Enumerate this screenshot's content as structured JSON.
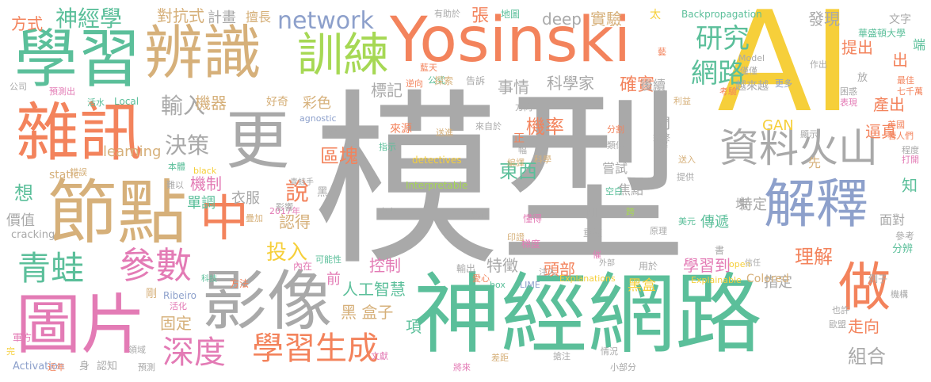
{
  "palette": {
    "gray": "#a9a9a9",
    "yellow": "#f6cf3a",
    "teal": "#5bbf9a",
    "orange": "#f3835c",
    "tan": "#d6b07a",
    "pink": "#e37bb5",
    "blue": "#8da0cb",
    "green": "#a6d854"
  },
  "words": [
    {
      "text": "模型",
      "color": "gray"
    },
    {
      "text": "AI",
      "color": "yellow"
    },
    {
      "text": "Yosinski",
      "color": "orange"
    },
    {
      "text": "神經網路",
      "color": "teal"
    },
    {
      "text": "學習",
      "color": "teal"
    },
    {
      "text": "辨識",
      "color": "tan"
    },
    {
      "text": "雜訊",
      "color": "orange"
    },
    {
      "text": "更",
      "color": "gray"
    },
    {
      "text": "節點",
      "color": "tan"
    },
    {
      "text": "影像",
      "color": "gray"
    },
    {
      "text": "圖片",
      "color": "pink"
    },
    {
      "text": "解釋",
      "color": "blue"
    },
    {
      "text": "訓練",
      "color": "green"
    },
    {
      "text": "資料火山",
      "color": "gray"
    },
    {
      "text": "做",
      "color": "orange"
    },
    {
      "text": "中",
      "color": "orange"
    },
    {
      "text": "參數",
      "color": "pink"
    },
    {
      "text": "青蛙",
      "color": "teal"
    },
    {
      "text": "深度",
      "color": "pink"
    },
    {
      "text": "學習生成",
      "color": "orange"
    },
    {
      "text": "神經學",
      "color": "teal"
    },
    {
      "text": "network",
      "color": "blue"
    },
    {
      "text": "研究",
      "color": "teal"
    },
    {
      "text": "網路",
      "color": "teal"
    },
    {
      "text": "方式",
      "color": "orange"
    },
    {
      "text": "對抗式",
      "color": "tan"
    },
    {
      "text": "計畫",
      "color": "gray"
    },
    {
      "text": "擅長",
      "color": "tan"
    },
    {
      "text": "張",
      "color": "orange"
    },
    {
      "text": "地圖",
      "color": "teal"
    },
    {
      "text": "太",
      "color": "yellow"
    },
    {
      "text": "Backpropagation",
      "color": "teal"
    },
    {
      "text": "deep",
      "color": "gray"
    },
    {
      "text": "實驗",
      "color": "tan"
    },
    {
      "text": "發現",
      "color": "gray"
    },
    {
      "text": "文字",
      "color": "gray"
    },
    {
      "text": "華盛頓大學",
      "color": "teal"
    },
    {
      "text": "提出",
      "color": "orange"
    },
    {
      "text": "輸入",
      "color": "gray"
    },
    {
      "text": "決策",
      "color": "gray"
    },
    {
      "text": "機器",
      "color": "tan"
    },
    {
      "text": "事情",
      "color": "gray"
    },
    {
      "text": "科學家",
      "color": "gray"
    },
    {
      "text": "確實",
      "color": "orange"
    },
    {
      "text": "標記",
      "color": "gray"
    },
    {
      "text": "機率",
      "color": "orange"
    },
    {
      "text": "區塊",
      "color": "orange"
    },
    {
      "text": "東西",
      "color": "teal"
    },
    {
      "text": "說",
      "color": "orange"
    },
    {
      "text": "機制",
      "color": "pink"
    },
    {
      "text": "投入",
      "color": "yellow"
    },
    {
      "text": "控制",
      "color": "pink"
    },
    {
      "text": "特徵",
      "color": "gray"
    },
    {
      "text": "頭部",
      "color": "orange"
    },
    {
      "text": "學習到",
      "color": "pink"
    },
    {
      "text": "理解",
      "color": "orange"
    },
    {
      "text": "人工智慧",
      "color": "teal"
    },
    {
      "text": "黑 盒子",
      "color": "tan"
    },
    {
      "text": "黑盒",
      "color": "yellow"
    },
    {
      "text": "組合",
      "color": "gray"
    },
    {
      "text": "走向",
      "color": "orange"
    },
    {
      "text": "固定",
      "color": "tan"
    },
    {
      "text": "項",
      "color": "teal"
    },
    {
      "text": "逼真",
      "color": "orange"
    },
    {
      "text": "產出",
      "color": "orange"
    },
    {
      "text": "GAN",
      "color": "yellow"
    },
    {
      "text": "learning",
      "color": "tan"
    },
    {
      "text": "static",
      "color": "tan"
    },
    {
      "text": "想",
      "color": "teal"
    },
    {
      "text": "價值",
      "color": "gray"
    },
    {
      "text": "單調",
      "color": "teal"
    },
    {
      "text": "認得",
      "color": "tan"
    },
    {
      "text": "彩色",
      "color": "tan"
    },
    {
      "text": "好奇",
      "color": "tan"
    },
    {
      "text": "衣服",
      "color": "gray"
    },
    {
      "text": "傳遞",
      "color": "teal"
    },
    {
      "text": "特定",
      "color": "gray"
    },
    {
      "text": "指定",
      "color": "gray"
    },
    {
      "text": "後續",
      "color": "gray"
    },
    {
      "text": "嘗試",
      "color": "gray"
    },
    {
      "text": "焦點",
      "color": "gray"
    },
    {
      "text": "越來越",
      "color": "gray"
    },
    {
      "text": "Colored",
      "color": "tan"
    },
    {
      "text": "detectives",
      "color": "yellow"
    },
    {
      "text": "Interpretable",
      "color": "green"
    },
    {
      "text": "Explanations",
      "color": "yellow"
    },
    {
      "text": "LIME",
      "color": "blue"
    },
    {
      "text": "Explainable",
      "color": "yellow"
    },
    {
      "text": "cracking",
      "color": "gray"
    },
    {
      "text": "Activation",
      "color": "blue"
    },
    {
      "text": "Ribeiro",
      "color": "blue"
    },
    {
      "text": "agnostic",
      "color": "blue"
    },
    {
      "text": "Local",
      "color": "teal"
    },
    {
      "text": "Model",
      "color": "gray"
    },
    {
      "text": "black",
      "color": "yellow"
    },
    {
      "text": "open",
      "color": "yellow"
    },
    {
      "text": "box",
      "color": "teal"
    },
    {
      "text": "2017年",
      "color": "pink"
    },
    {
      "text": "有助於",
      "color": "gray"
    },
    {
      "text": "面對",
      "color": "gray"
    },
    {
      "text": "參考",
      "color": "gray"
    },
    {
      "text": "分辨",
      "color": "teal"
    },
    {
      "text": "例子",
      "color": "gray"
    },
    {
      "text": "機構",
      "color": "gray"
    },
    {
      "text": "歐盟",
      "color": "gray"
    },
    {
      "text": "也許",
      "color": "gray"
    },
    {
      "text": "知",
      "color": "teal"
    },
    {
      "text": "先",
      "color": "tan"
    },
    {
      "text": "間",
      "color": "gray"
    },
    {
      "text": "出",
      "color": "orange"
    },
    {
      "text": "端",
      "color": "teal"
    },
    {
      "text": "放",
      "color": "gray"
    },
    {
      "text": "最佳",
      "color": "orange"
    },
    {
      "text": "七千萬",
      "color": "orange"
    },
    {
      "text": "困惑",
      "color": "gray"
    },
    {
      "text": "表現",
      "color": "pink"
    },
    {
      "text": "著人們",
      "color": "orange"
    },
    {
      "text": "程度",
      "color": "gray"
    },
    {
      "text": "打開",
      "color": "pink"
    },
    {
      "text": "近年",
      "color": "orange"
    },
    {
      "text": "身",
      "color": "gray"
    },
    {
      "text": "認知",
      "color": "gray"
    },
    {
      "text": "預測",
      "color": "gray"
    },
    {
      "text": "小部分",
      "color": "gray"
    },
    {
      "text": "差距",
      "color": "tan"
    },
    {
      "text": "將來",
      "color": "pink"
    },
    {
      "text": "情況",
      "color": "gray"
    },
    {
      "text": "搶注",
      "color": "gray"
    },
    {
      "text": "文獻",
      "color": "pink"
    },
    {
      "text": "輸出",
      "color": "gray"
    },
    {
      "text": "重複",
      "color": "gray"
    },
    {
      "text": "用於",
      "color": "gray"
    },
    {
      "text": "信任",
      "color": "gray"
    },
    {
      "text": "外部",
      "color": "gray"
    },
    {
      "text": "原理",
      "color": "gray"
    },
    {
      "text": "美元",
      "color": "teal"
    },
    {
      "text": "梯度",
      "color": "pink"
    },
    {
      "text": "懂得",
      "color": "pink"
    },
    {
      "text": "事實",
      "color": "gray"
    },
    {
      "text": "提示",
      "color": "gray"
    },
    {
      "text": "印證",
      "color": "tan"
    },
    {
      "text": "方法",
      "color": "orange"
    },
    {
      "text": "科技",
      "color": "teal"
    },
    {
      "text": "活化",
      "color": "pink"
    },
    {
      "text": "剛",
      "color": "tan"
    },
    {
      "text": "軍方",
      "color": "pink"
    },
    {
      "text": "領域",
      "color": "gray"
    },
    {
      "text": "完",
      "color": "yellow"
    },
    {
      "text": "可能性",
      "color": "teal"
    },
    {
      "text": "前",
      "color": "pink"
    },
    {
      "text": "內在",
      "color": "pink"
    },
    {
      "text": "影響",
      "color": "gray"
    },
    {
      "text": "疊加",
      "color": "tan"
    },
    {
      "text": "黑",
      "color": "gray"
    },
    {
      "text": "青蛙手",
      "color": "gray"
    },
    {
      "text": "本體",
      "color": "teal"
    },
    {
      "text": "錯誤",
      "color": "tan"
    },
    {
      "text": "難以",
      "color": "gray"
    },
    {
      "text": "公司",
      "color": "gray"
    },
    {
      "text": "預測出",
      "color": "pink"
    },
    {
      "text": "活水",
      "color": "teal"
    },
    {
      "text": "開啟",
      "color": "gray"
    },
    {
      "text": "來源",
      "color": "orange"
    },
    {
      "text": "指示",
      "color": "teal"
    },
    {
      "text": "逆向",
      "color": "orange"
    },
    {
      "text": "公式",
      "color": "teal"
    },
    {
      "text": "探索",
      "color": "tan"
    },
    {
      "text": "告訴",
      "color": "gray"
    },
    {
      "text": "藍天",
      "color": "orange"
    },
    {
      "text": "送進",
      "color": "tan"
    },
    {
      "text": "來自於",
      "color": "gray"
    },
    {
      "text": "方向",
      "color": "gray"
    },
    {
      "text": "正",
      "color": "orange"
    },
    {
      "text": "幅",
      "color": "gray"
    },
    {
      "text": "編譯",
      "color": "tan"
    },
    {
      "text": "科學",
      "color": "tan"
    },
    {
      "text": "分割",
      "color": "orange"
    },
    {
      "text": "空白",
      "color": "teal"
    },
    {
      "text": "類似",
      "color": "gray"
    },
    {
      "text": "始終",
      "color": "gray"
    },
    {
      "text": "解",
      "color": "gray"
    },
    {
      "text": "送入",
      "color": "tan"
    },
    {
      "text": "提供",
      "color": "gray"
    },
    {
      "text": "利益",
      "color": "tan"
    },
    {
      "text": "顯示",
      "color": "gray"
    },
    {
      "text": "美國",
      "color": "orange"
    },
    {
      "text": "更多",
      "color": "blue"
    },
    {
      "text": "考驗",
      "color": "orange"
    },
    {
      "text": "作出",
      "color": "gray"
    },
    {
      "text": "僅僅",
      "color": "gray"
    },
    {
      "text": "塊",
      "color": "gray"
    },
    {
      "text": "倒",
      "color": "gray"
    },
    {
      "text": "書",
      "color": "gray"
    },
    {
      "text": "注入",
      "color": "gray"
    },
    {
      "text": "愛心",
      "color": "orange"
    },
    {
      "text": "催",
      "color": "pink"
    },
    {
      "text": "藝",
      "color": "orange"
    },
    {
      "text": "跨",
      "color": "green"
    }
  ]
}
